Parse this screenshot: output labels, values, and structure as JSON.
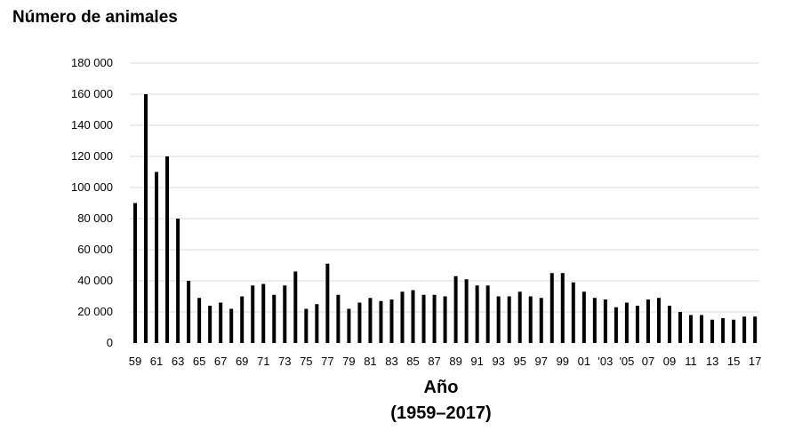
{
  "chart_data": {
    "type": "bar",
    "title": "Número de animales",
    "xlabel": "Año",
    "xlabel_sub": "(1959–2017)",
    "ylabel": "",
    "ylim": [
      0,
      180000
    ],
    "yticks": [
      0,
      20000,
      40000,
      60000,
      80000,
      100000,
      120000,
      140000,
      160000,
      180000
    ],
    "ytick_labels": [
      "0",
      "20 000",
      "40 000",
      "60 000",
      "80 000",
      "100 000",
      "120 000",
      "140 000",
      "160 000",
      "180 000"
    ],
    "grid": true,
    "bar_color": "#000000",
    "grid_color": "#d9d9d9",
    "categories": [
      "1959",
      "1960",
      "1961",
      "1962",
      "1963",
      "1964",
      "1965",
      "1966",
      "1967",
      "1968",
      "1969",
      "1970",
      "1971",
      "1972",
      "1973",
      "1974",
      "1975",
      "1976",
      "1977",
      "1978",
      "1979",
      "1980",
      "1981",
      "1982",
      "1983",
      "1984",
      "1985",
      "1986",
      "1987",
      "1988",
      "1989",
      "1990",
      "1991",
      "1992",
      "1993",
      "1994",
      "1995",
      "1996",
      "1997",
      "1998",
      "1999",
      "2000",
      "2001",
      "2002",
      "2003",
      "2004",
      "2005",
      "2006",
      "2007",
      "2008",
      "2009",
      "2010",
      "2011",
      "2012",
      "2013",
      "2014",
      "2015",
      "2016",
      "2017"
    ],
    "tick_labels": [
      "59",
      "61",
      "63",
      "65",
      "67",
      "69",
      "71",
      "73",
      "75",
      "77",
      "79",
      "81",
      "83",
      "85",
      "87",
      "89",
      "91",
      "93",
      "95",
      "97",
      "99",
      "01",
      "'03",
      "'05",
      "07",
      "09",
      "11",
      "13",
      "15",
      "17"
    ],
    "values": [
      90000,
      160000,
      110000,
      120000,
      80000,
      40000,
      29000,
      24000,
      26000,
      22000,
      30000,
      37000,
      38000,
      31000,
      37000,
      46000,
      22000,
      25000,
      51000,
      31000,
      22000,
      26000,
      29000,
      27000,
      28000,
      33000,
      34000,
      31000,
      31000,
      30000,
      43000,
      41000,
      37000,
      37000,
      30000,
      30000,
      33000,
      30000,
      29000,
      45000,
      45000,
      39000,
      33000,
      29000,
      28000,
      23000,
      26000,
      24000,
      28000,
      29000,
      24000,
      20000,
      18000,
      18000,
      15000,
      16000,
      15000,
      17000,
      17000
    ]
  }
}
